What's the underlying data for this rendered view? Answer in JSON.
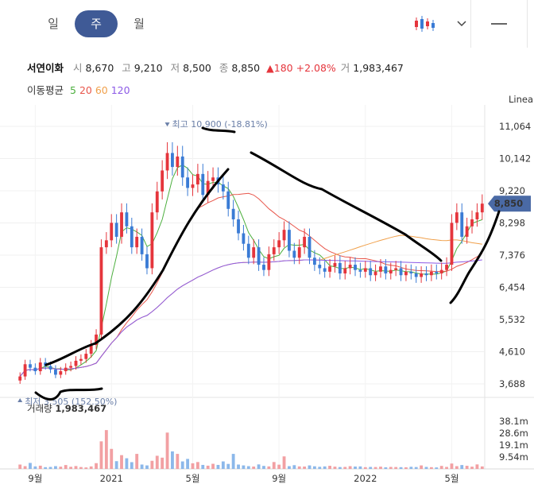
{
  "tabs": [
    {
      "label": "일"
    },
    {
      "label": "주"
    },
    {
      "label": "월"
    }
  ],
  "active_tab": 1,
  "toolbar": {
    "chart_type_icon": "candlestick-icon",
    "dropdown_icon": "chevron-down-icon",
    "line_tool_icon": "horizontal-line-icon"
  },
  "summary": {
    "name": "서연이화",
    "open_label": "시",
    "open": "8,670",
    "high_label": "고",
    "high": "9,210",
    "low_label": "저",
    "low": "8,500",
    "close_label": "종",
    "close": "8,850",
    "change": "▲180",
    "change_pct": "+2.08%",
    "volume_label": "거",
    "volume": "1,983,467"
  },
  "ma_legend": {
    "label": "이동평균",
    "items": [
      {
        "period": "5",
        "color": "#4caf3e"
      },
      {
        "period": "20",
        "color": "#e8564b"
      },
      {
        "period": "60",
        "color": "#f0a04b"
      },
      {
        "period": "120",
        "color": "#8c5ae6"
      }
    ]
  },
  "colors": {
    "up": "#e5353c",
    "down": "#3a7bd5",
    "vol_up": "#f2a0a3",
    "vol_down": "#8cb8ea",
    "price_tag": "#4a6aa5"
  },
  "chart_data": {
    "type": "candlestick",
    "scale_label": "Linear",
    "y_ticks": [
      11064,
      10142,
      9220,
      8298,
      7376,
      6454,
      5532,
      4610,
      3688
    ],
    "y_range": [
      3300,
      11450
    ],
    "current_price": "8,850",
    "current_value": 8850,
    "high_note": "최고 10,900 (-18.81%)",
    "high_value": 10900,
    "low_note": "최저 3,505 (152.50%)",
    "low_value": 3505,
    "x_ticks": [
      {
        "label": "9월",
        "index": 3
      },
      {
        "label": "2021",
        "index": 18
      },
      {
        "label": "5월",
        "index": 34
      },
      {
        "label": "9월",
        "index": 51
      },
      {
        "label": "2022",
        "index": 68
      },
      {
        "label": "5월",
        "index": 85
      }
    ],
    "volume_label": "거래량",
    "volume_value": "1,983,467",
    "volume_ticks": [
      "38.1m",
      "28.6m",
      "19.1m",
      "9.54m"
    ],
    "volume_tick_values": [
      38.1,
      28.6,
      19.1,
      9.54
    ],
    "volume_max": 52,
    "closes": [
      3900,
      4250,
      4150,
      4050,
      4300,
      4200,
      4100,
      3950,
      4050,
      4150,
      4200,
      4350,
      4400,
      4550,
      4800,
      5100,
      7600,
      7800,
      8300,
      7900,
      8600,
      8200,
      7600,
      7900,
      7400,
      7000,
      8600,
      9200,
      9800,
      10300,
      9900,
      10200,
      9600,
      9300,
      9400,
      9700,
      9100,
      9500,
      9600,
      9400,
      9200,
      8700,
      8400,
      8000,
      7700,
      7300,
      7600,
      7100,
      6950,
      7400,
      7600,
      7800,
      8100,
      7500,
      7300,
      7600,
      7900,
      7300,
      7100,
      7000,
      6900,
      7050,
      7150,
      6850,
      7000,
      7100,
      6950,
      6900,
      7000,
      6800,
      6900,
      7050,
      6850,
      6950,
      7000,
      6800,
      6900,
      6850,
      6750,
      6850,
      6800,
      6900,
      6850,
      6950,
      7100,
      8300,
      8600,
      7900,
      8200,
      8400,
      8600,
      8850
    ],
    "volumes": [
      3.5,
      2.2,
      4.8,
      2.0,
      2.6,
      1.4,
      1.6,
      2.2,
      1.8,
      3.1,
      1.7,
      2.3,
      1.5,
      1.2,
      2.0,
      4.6,
      22.0,
      31.0,
      16.0,
      6.2,
      11.0,
      8.5,
      5.4,
      12.0,
      3.5,
      2.8,
      6.5,
      10.5,
      9.0,
      29.0,
      14.0,
      12.0,
      6.0,
      8.0,
      4.5,
      5.5,
      3.2,
      2.6,
      4.1,
      3.2,
      6.0,
      4.0,
      12.0,
      3.5,
      2.8,
      2.2,
      1.9,
      3.6,
      2.4,
      2.0,
      5.5,
      3.4,
      10.0,
      2.2,
      3.0,
      2.0,
      1.9,
      2.8,
      2.1,
      1.7,
      2.0,
      2.5,
      1.8,
      1.5,
      1.6,
      2.2,
      1.9,
      2.0,
      1.4,
      1.6,
      1.5,
      1.8,
      1.3,
      1.6,
      1.5,
      1.4,
      1.3,
      1.7,
      1.5,
      2.8,
      1.6,
      1.4,
      1.2,
      2.4,
      1.6,
      4.3,
      2.2,
      3.1,
      2.5,
      1.8,
      3.6,
      2.0
    ]
  }
}
